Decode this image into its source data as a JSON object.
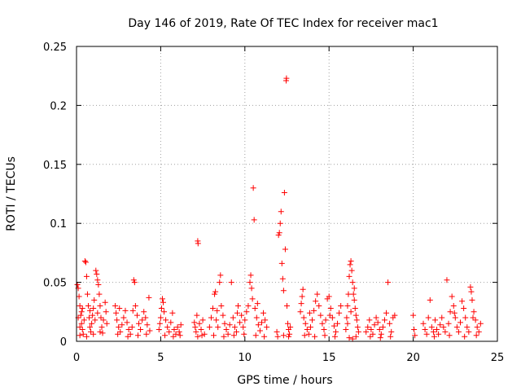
{
  "chart_data": {
    "type": "scatter",
    "title": "Day 146 of 2019, Rate Of TEC Index for receiver mac1",
    "xlabel": "GPS time / hours",
    "ylabel": "ROTI / TECUs",
    "xlim": [
      0,
      25
    ],
    "ylim": [
      0,
      0.25
    ],
    "xticks": [
      0,
      5,
      10,
      15,
      20,
      25
    ],
    "xtick_labels": [
      "0",
      "5",
      "10",
      "15",
      "20",
      "25"
    ],
    "yticks": [
      0,
      0.05,
      0.1,
      0.15,
      0.2,
      0.25
    ],
    "ytick_labels": [
      "0",
      "0.05",
      "0.1",
      "0.15",
      "0.2",
      "0.25"
    ],
    "grid": true,
    "marker": "+",
    "color": "#ff0000",
    "series": [
      {
        "name": "mac1",
        "points": [
          [
            0.05,
            0.048
          ],
          [
            0.1,
            0.045
          ],
          [
            0.15,
            0.038
          ],
          [
            0.2,
            0.03
          ],
          [
            0.25,
            0.022
          ],
          [
            0.3,
            0.015
          ],
          [
            0.35,
            0.01
          ],
          [
            0.4,
            0.006
          ],
          [
            0.1,
            0.02
          ],
          [
            0.2,
            0.012
          ],
          [
            0.3,
            0.025
          ],
          [
            0.45,
            0.018
          ],
          [
            0.5,
            0.068
          ],
          [
            0.55,
            0.067
          ],
          [
            0.6,
            0.055
          ],
          [
            0.65,
            0.04
          ],
          [
            0.7,
            0.03
          ],
          [
            0.75,
            0.02
          ],
          [
            0.8,
            0.012
          ],
          [
            0.85,
            0.008
          ],
          [
            0.9,
            0.015
          ],
          [
            0.95,
            0.022
          ],
          [
            1.0,
            0.028
          ],
          [
            1.05,
            0.035
          ],
          [
            1.1,
            0.018
          ],
          [
            1.15,
            0.06
          ],
          [
            1.2,
            0.057
          ],
          [
            1.25,
            0.052
          ],
          [
            1.3,
            0.048
          ],
          [
            1.35,
            0.04
          ],
          [
            1.4,
            0.03
          ],
          [
            1.45,
            0.02
          ],
          [
            1.5,
            0.012
          ],
          [
            1.55,
            0.007
          ],
          [
            1.6,
            0.018
          ],
          [
            1.7,
            0.033
          ],
          [
            1.75,
            0.025
          ],
          [
            1.8,
            0.015
          ],
          [
            0.2,
            0.005
          ],
          [
            0.6,
            0.004
          ],
          [
            1.0,
            0.006
          ],
          [
            1.4,
            0.008
          ],
          [
            0.35,
            0.028
          ],
          [
            0.8,
            0.026
          ],
          [
            1.25,
            0.024
          ],
          [
            2.3,
            0.03
          ],
          [
            2.35,
            0.024
          ],
          [
            2.4,
            0.018
          ],
          [
            2.5,
            0.012
          ],
          [
            2.6,
            0.008
          ],
          [
            2.7,
            0.014
          ],
          [
            2.8,
            0.02
          ],
          [
            2.9,
            0.026
          ],
          [
            3.0,
            0.016
          ],
          [
            3.1,
            0.01
          ],
          [
            3.2,
            0.006
          ],
          [
            3.3,
            0.012
          ],
          [
            3.4,
            0.052
          ],
          [
            3.45,
            0.05
          ],
          [
            3.5,
            0.03
          ],
          [
            3.6,
            0.022
          ],
          [
            3.7,
            0.015
          ],
          [
            3.8,
            0.01
          ],
          [
            3.9,
            0.018
          ],
          [
            4.0,
            0.025
          ],
          [
            4.1,
            0.02
          ],
          [
            4.2,
            0.014
          ],
          [
            4.3,
            0.037
          ],
          [
            4.35,
            0.009
          ],
          [
            2.45,
            0.006
          ],
          [
            3.05,
            0.004
          ],
          [
            3.65,
            0.005
          ],
          [
            4.15,
            0.006
          ],
          [
            2.55,
            0.028
          ],
          [
            3.35,
            0.026
          ],
          [
            4.9,
            0.01
          ],
          [
            4.95,
            0.015
          ],
          [
            5.0,
            0.02
          ],
          [
            5.05,
            0.028
          ],
          [
            5.1,
            0.036
          ],
          [
            5.15,
            0.033
          ],
          [
            5.2,
            0.025
          ],
          [
            5.3,
            0.018
          ],
          [
            5.4,
            0.012
          ],
          [
            5.5,
            0.008
          ],
          [
            5.6,
            0.016
          ],
          [
            5.7,
            0.024
          ],
          [
            5.8,
            0.01
          ],
          [
            5.9,
            0.006
          ],
          [
            6.0,
            0.012
          ],
          [
            6.1,
            0.008
          ],
          [
            6.2,
            0.014
          ],
          [
            5.25,
            0.005
          ],
          [
            5.75,
            0.004
          ],
          [
            6.15,
            0.005
          ],
          [
            7.0,
            0.016
          ],
          [
            7.05,
            0.012
          ],
          [
            7.1,
            0.008
          ],
          [
            7.15,
            0.022
          ],
          [
            7.2,
            0.085
          ],
          [
            7.22,
            0.083
          ],
          [
            7.3,
            0.015
          ],
          [
            7.4,
            0.01
          ],
          [
            7.5,
            0.018
          ],
          [
            7.6,
            0.006
          ],
          [
            7.2,
            0.004
          ],
          [
            7.45,
            0.005
          ],
          [
            7.9,
            0.012
          ],
          [
            8.0,
            0.02
          ],
          [
            8.1,
            0.028
          ],
          [
            8.2,
            0.04
          ],
          [
            8.25,
            0.042
          ],
          [
            8.3,
            0.018
          ],
          [
            8.4,
            0.012
          ],
          [
            8.5,
            0.05
          ],
          [
            8.55,
            0.056
          ],
          [
            8.6,
            0.03
          ],
          [
            8.7,
            0.022
          ],
          [
            8.8,
            0.015
          ],
          [
            8.9,
            0.01
          ],
          [
            9.0,
            0.006
          ],
          [
            9.1,
            0.014
          ],
          [
            9.2,
            0.05
          ],
          [
            9.3,
            0.02
          ],
          [
            9.4,
            0.012
          ],
          [
            9.5,
            0.008
          ],
          [
            9.6,
            0.03
          ],
          [
            9.7,
            0.016
          ],
          [
            9.8,
            0.022
          ],
          [
            9.9,
            0.012
          ],
          [
            10.0,
            0.018
          ],
          [
            10.1,
            0.025
          ],
          [
            10.2,
            0.03
          ],
          [
            10.3,
            0.05
          ],
          [
            10.35,
            0.056
          ],
          [
            10.4,
            0.045
          ],
          [
            10.45,
            0.036
          ],
          [
            10.5,
            0.13
          ],
          [
            10.55,
            0.103
          ],
          [
            10.6,
            0.028
          ],
          [
            10.7,
            0.02
          ],
          [
            10.8,
            0.014
          ],
          [
            10.9,
            0.009
          ],
          [
            11.0,
            0.016
          ],
          [
            11.1,
            0.024
          ],
          [
            11.2,
            0.018
          ],
          [
            11.3,
            0.012
          ],
          [
            8.15,
            0.005
          ],
          [
            8.75,
            0.004
          ],
          [
            9.35,
            0.005
          ],
          [
            9.95,
            0.006
          ],
          [
            10.65,
            0.005
          ],
          [
            11.15,
            0.004
          ],
          [
            8.35,
            0.026
          ],
          [
            9.55,
            0.024
          ],
          [
            10.75,
            0.032
          ],
          [
            11.9,
            0.008
          ],
          [
            12.0,
            0.09
          ],
          [
            12.05,
            0.092
          ],
          [
            12.1,
            0.1
          ],
          [
            12.15,
            0.11
          ],
          [
            12.2,
            0.066
          ],
          [
            12.25,
            0.053
          ],
          [
            12.3,
            0.043
          ],
          [
            12.35,
            0.126
          ],
          [
            12.4,
            0.078
          ],
          [
            12.45,
            0.221
          ],
          [
            12.47,
            0.223
          ],
          [
            12.5,
            0.03
          ],
          [
            12.55,
            0.015
          ],
          [
            12.6,
            0.01
          ],
          [
            12.65,
            0.006
          ],
          [
            12.7,
            0.012
          ],
          [
            11.95,
            0.004
          ],
          [
            12.3,
            0.005
          ],
          [
            12.6,
            0.004
          ],
          [
            13.3,
            0.025
          ],
          [
            13.35,
            0.032
          ],
          [
            13.4,
            0.038
          ],
          [
            13.45,
            0.044
          ],
          [
            13.5,
            0.02
          ],
          [
            13.6,
            0.015
          ],
          [
            13.7,
            0.01
          ],
          [
            13.8,
            0.006
          ],
          [
            13.9,
            0.012
          ],
          [
            14.0,
            0.018
          ],
          [
            14.1,
            0.026
          ],
          [
            14.2,
            0.034
          ],
          [
            14.3,
            0.04
          ],
          [
            14.4,
            0.03
          ],
          [
            14.5,
            0.022
          ],
          [
            14.6,
            0.015
          ],
          [
            14.7,
            0.01
          ],
          [
            14.8,
            0.018
          ],
          [
            14.9,
            0.036
          ],
          [
            15.0,
            0.038
          ],
          [
            15.1,
            0.028
          ],
          [
            15.2,
            0.02
          ],
          [
            15.3,
            0.013
          ],
          [
            15.4,
            0.008
          ],
          [
            15.5,
            0.015
          ],
          [
            15.6,
            0.024
          ],
          [
            15.7,
            0.03
          ],
          [
            13.55,
            0.005
          ],
          [
            14.15,
            0.004
          ],
          [
            14.75,
            0.005
          ],
          [
            15.35,
            0.004
          ],
          [
            13.85,
            0.024
          ],
          [
            15.05,
            0.022
          ],
          [
            16.0,
            0.01
          ],
          [
            16.05,
            0.02
          ],
          [
            16.1,
            0.03
          ],
          [
            16.15,
            0.04
          ],
          [
            16.2,
            0.055
          ],
          [
            16.25,
            0.065
          ],
          [
            16.3,
            0.068
          ],
          [
            16.35,
            0.06
          ],
          [
            16.4,
            0.05
          ],
          [
            16.45,
            0.04
          ],
          [
            16.5,
            0.035
          ],
          [
            16.55,
            0.028
          ],
          [
            16.6,
            0.022
          ],
          [
            16.65,
            0.018
          ],
          [
            16.7,
            0.012
          ],
          [
            16.75,
            0.008
          ],
          [
            16.2,
            0.003
          ],
          [
            16.4,
            0.002
          ],
          [
            16.6,
            0.004
          ],
          [
            16.1,
            0.015
          ],
          [
            16.3,
            0.025
          ],
          [
            16.5,
            0.045
          ],
          [
            17.2,
            0.008
          ],
          [
            17.3,
            0.012
          ],
          [
            17.4,
            0.018
          ],
          [
            17.5,
            0.01
          ],
          [
            17.6,
            0.006
          ],
          [
            17.7,
            0.014
          ],
          [
            17.8,
            0.02
          ],
          [
            17.9,
            0.016
          ],
          [
            18.0,
            0.01
          ],
          [
            18.1,
            0.006
          ],
          [
            18.2,
            0.012
          ],
          [
            18.3,
            0.018
          ],
          [
            18.4,
            0.024
          ],
          [
            18.5,
            0.05
          ],
          [
            18.6,
            0.015
          ],
          [
            18.7,
            0.008
          ],
          [
            18.8,
            0.02
          ],
          [
            18.9,
            0.022
          ],
          [
            17.45,
            0.004
          ],
          [
            18.05,
            0.003
          ],
          [
            18.65,
            0.004
          ],
          [
            20.0,
            0.022
          ],
          [
            20.05,
            0.01
          ],
          [
            20.1,
            0.005
          ],
          [
            20.6,
            0.015
          ],
          [
            20.7,
            0.01
          ],
          [
            20.8,
            0.006
          ],
          [
            20.9,
            0.02
          ],
          [
            21.0,
            0.035
          ],
          [
            21.1,
            0.012
          ],
          [
            21.2,
            0.008
          ],
          [
            21.3,
            0.018
          ],
          [
            21.4,
            0.01
          ],
          [
            21.5,
            0.006
          ],
          [
            21.6,
            0.014
          ],
          [
            21.7,
            0.02
          ],
          [
            21.8,
            0.012
          ],
          [
            21.9,
            0.008
          ],
          [
            22.0,
            0.052
          ],
          [
            22.1,
            0.015
          ],
          [
            22.2,
            0.025
          ],
          [
            22.3,
            0.038
          ],
          [
            22.4,
            0.03
          ],
          [
            22.5,
            0.02
          ],
          [
            22.6,
            0.012
          ],
          [
            22.7,
            0.008
          ],
          [
            22.8,
            0.016
          ],
          [
            22.9,
            0.034
          ],
          [
            23.0,
            0.028
          ],
          [
            23.1,
            0.02
          ],
          [
            23.2,
            0.012
          ],
          [
            23.3,
            0.008
          ],
          [
            23.4,
            0.046
          ],
          [
            23.45,
            0.042
          ],
          [
            23.5,
            0.035
          ],
          [
            23.6,
            0.025
          ],
          [
            23.7,
            0.018
          ],
          [
            23.8,
            0.012
          ],
          [
            23.9,
            0.008
          ],
          [
            24.0,
            0.015
          ],
          [
            21.25,
            0.004
          ],
          [
            22.15,
            0.005
          ],
          [
            23.05,
            0.004
          ],
          [
            23.75,
            0.005
          ],
          [
            22.45,
            0.024
          ],
          [
            23.55,
            0.02
          ]
        ]
      }
    ]
  }
}
